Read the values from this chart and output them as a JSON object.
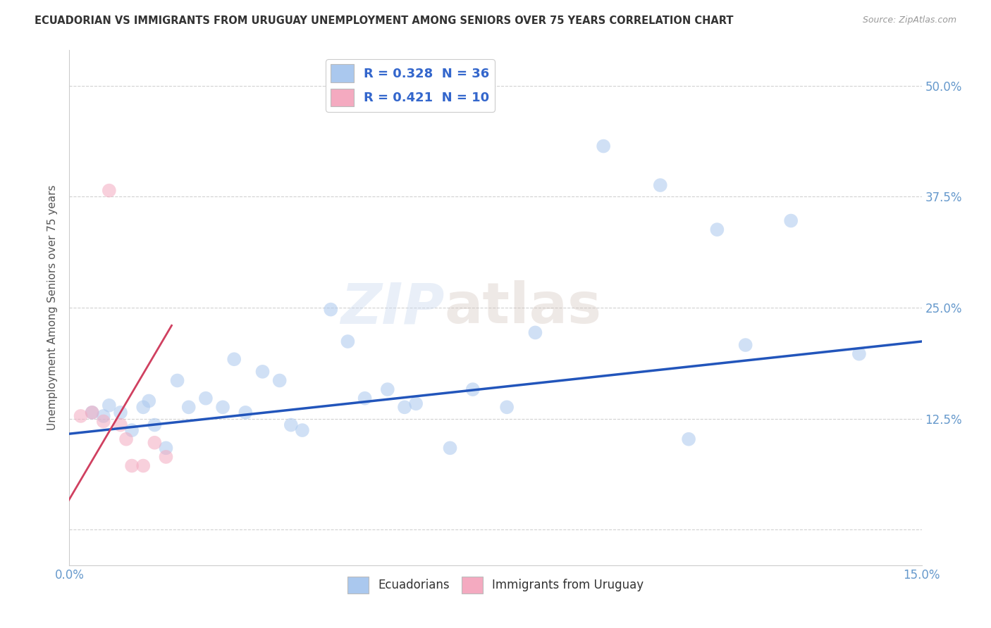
{
  "title": "ECUADORIAN VS IMMIGRANTS FROM URUGUAY UNEMPLOYMENT AMONG SENIORS OVER 75 YEARS CORRELATION CHART",
  "source": "Source: ZipAtlas.com",
  "ylabel": "Unemployment Among Seniors over 75 years",
  "xlim": [
    0.0,
    0.15
  ],
  "ylim": [
    -0.04,
    0.54
  ],
  "xticks": [
    0.0,
    0.025,
    0.05,
    0.075,
    0.1,
    0.125,
    0.15
  ],
  "xtick_labels": [
    "0.0%",
    "",
    "",
    "",
    "",
    "",
    "15.0%"
  ],
  "yticks": [
    0.0,
    0.125,
    0.25,
    0.375,
    0.5
  ],
  "ytick_labels_left": [
    "",
    "",
    "",
    "",
    ""
  ],
  "ytick_labels_right": [
    "",
    "12.5%",
    "25.0%",
    "37.5%",
    "50.0%"
  ],
  "watermark_zip": "ZIP",
  "watermark_atlas": "atlas",
  "legend_entries": [
    {
      "label": "R = 0.328  N = 36",
      "color": "#a8c8f0"
    },
    {
      "label": "R = 0.421  N = 10",
      "color": "#f8b8c8"
    }
  ],
  "blue_scatter": [
    [
      0.004,
      0.132
    ],
    [
      0.006,
      0.128
    ],
    [
      0.007,
      0.14
    ],
    [
      0.009,
      0.132
    ],
    [
      0.011,
      0.112
    ],
    [
      0.013,
      0.138
    ],
    [
      0.014,
      0.145
    ],
    [
      0.015,
      0.118
    ],
    [
      0.017,
      0.092
    ],
    [
      0.019,
      0.168
    ],
    [
      0.021,
      0.138
    ],
    [
      0.024,
      0.148
    ],
    [
      0.027,
      0.138
    ],
    [
      0.029,
      0.192
    ],
    [
      0.031,
      0.132
    ],
    [
      0.034,
      0.178
    ],
    [
      0.037,
      0.168
    ],
    [
      0.039,
      0.118
    ],
    [
      0.041,
      0.112
    ],
    [
      0.046,
      0.248
    ],
    [
      0.049,
      0.212
    ],
    [
      0.052,
      0.148
    ],
    [
      0.056,
      0.158
    ],
    [
      0.059,
      0.138
    ],
    [
      0.061,
      0.142
    ],
    [
      0.067,
      0.092
    ],
    [
      0.071,
      0.158
    ],
    [
      0.077,
      0.138
    ],
    [
      0.082,
      0.222
    ],
    [
      0.094,
      0.432
    ],
    [
      0.104,
      0.388
    ],
    [
      0.109,
      0.102
    ],
    [
      0.114,
      0.338
    ],
    [
      0.119,
      0.208
    ],
    [
      0.127,
      0.348
    ],
    [
      0.139,
      0.198
    ]
  ],
  "pink_scatter": [
    [
      0.002,
      0.128
    ],
    [
      0.004,
      0.132
    ],
    [
      0.006,
      0.122
    ],
    [
      0.007,
      0.382
    ],
    [
      0.009,
      0.118
    ],
    [
      0.01,
      0.102
    ],
    [
      0.011,
      0.072
    ],
    [
      0.013,
      0.072
    ],
    [
      0.015,
      0.098
    ],
    [
      0.017,
      0.082
    ]
  ],
  "blue_line": [
    [
      0.0,
      0.108
    ],
    [
      0.15,
      0.212
    ]
  ],
  "pink_line": [
    [
      -0.005,
      -0.02
    ],
    [
      0.018,
      0.23
    ]
  ],
  "scatter_size_blue": 200,
  "scatter_size_pink": 200,
  "scatter_color_blue": "#aac8ee",
  "scatter_color_pink": "#f4aac0",
  "scatter_alpha_blue": 0.55,
  "scatter_alpha_pink": 0.55,
  "line_color_blue": "#2255bb",
  "line_color_pink": "#d04060",
  "grid_color": "#cccccc",
  "background_color": "#ffffff",
  "title_color": "#333333",
  "axis_label_color": "#555555",
  "tick_color": "#6699cc",
  "legend_text_color": "#3366cc"
}
